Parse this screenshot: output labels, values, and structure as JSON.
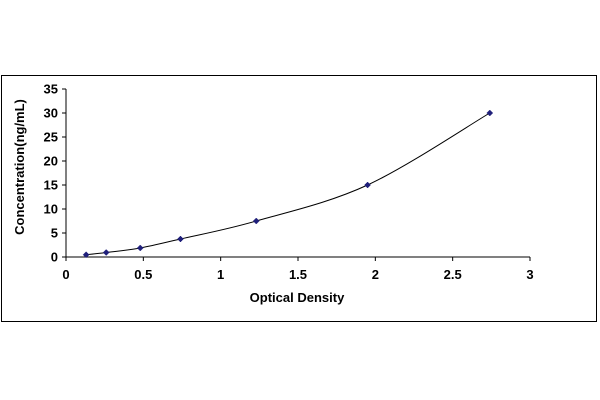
{
  "chart_data": {
    "type": "scatter",
    "title": "",
    "xlabel": "Optical Density",
    "ylabel": "Concentration(ng/mL)",
    "xlim": [
      0,
      3
    ],
    "ylim": [
      0,
      35
    ],
    "xticks": [
      "0",
      "0.5",
      "1",
      "1.5",
      "2",
      "2.5",
      "3"
    ],
    "yticks": [
      "0",
      "5",
      "10",
      "15",
      "20",
      "25",
      "30",
      "35"
    ],
    "grid": false,
    "legend": "none",
    "series": [
      {
        "x": [
          0.13,
          0.26,
          0.48,
          0.74,
          1.23,
          1.95,
          2.74
        ],
        "y": [
          0.47,
          0.94,
          1.88,
          3.75,
          7.5,
          15,
          30
        ],
        "color": "#1f1f7a",
        "marker": "diamond",
        "line": "smooth"
      }
    ]
  }
}
